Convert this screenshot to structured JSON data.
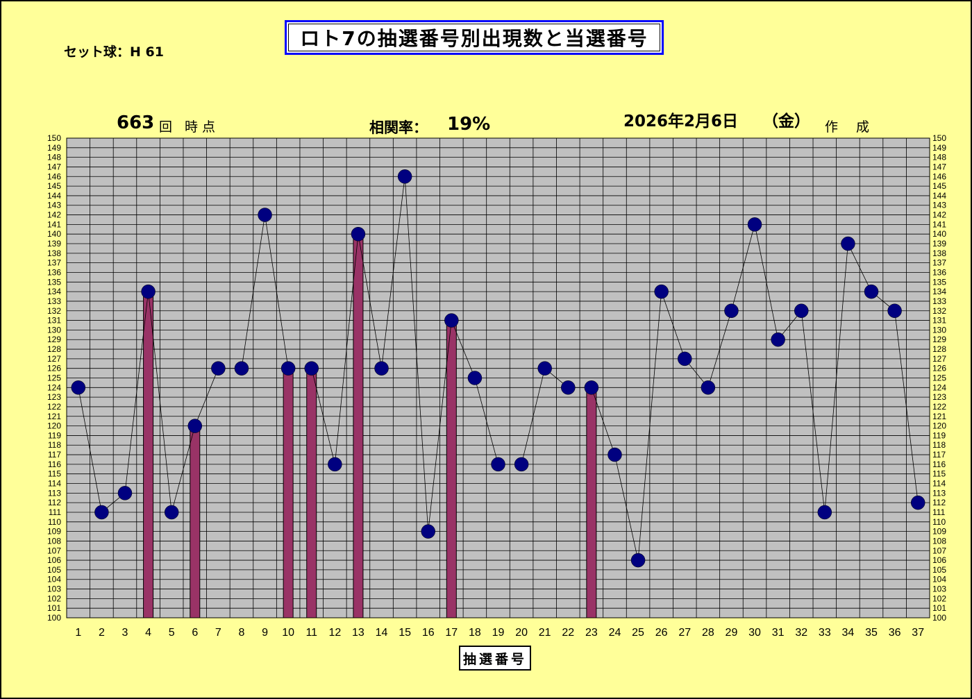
{
  "title": "ロト7の抽選番号別出現数と当選番号",
  "set_ball": "セット球：H 61",
  "draw_count": "663",
  "draw_unit": "回 時点",
  "correlation_label": "相関率：",
  "correlation_value": "19%",
  "date": "2026年2月6日",
  "weekday": "（金）",
  "made_label": "作 成",
  "x_axis_title": "抽選番号",
  "colors": {
    "background": "#ffff99",
    "plot_area": "#c0c0c0",
    "marker": "#000080",
    "bar": "#993366",
    "title_border": "#0000ff"
  },
  "chart_data": {
    "type": "line",
    "categories": [
      "1",
      "2",
      "3",
      "4",
      "5",
      "6",
      "7",
      "8",
      "9",
      "10",
      "11",
      "12",
      "13",
      "14",
      "15",
      "16",
      "17",
      "18",
      "19",
      "20",
      "21",
      "22",
      "23",
      "24",
      "25",
      "26",
      "27",
      "28",
      "29",
      "30",
      "31",
      "32",
      "33",
      "34",
      "35",
      "36",
      "37"
    ],
    "series": [
      {
        "values": [
          124,
          111,
          113,
          134,
          111,
          120,
          126,
          126,
          142,
          126,
          126,
          116,
          140,
          126,
          146,
          109,
          131,
          125,
          116,
          116,
          126,
          124,
          124,
          117,
          106,
          134,
          127,
          124,
          132,
          141,
          129,
          132,
          111,
          139,
          134,
          132,
          112
        ]
      }
    ],
    "winning_numbers": [
      4,
      6,
      10,
      11,
      13,
      17,
      23
    ],
    "ylim": [
      100,
      150
    ],
    "y_tick_step": 1,
    "grid": true,
    "y_ticks_both_sides": true,
    "xlabel": "抽選番号"
  }
}
